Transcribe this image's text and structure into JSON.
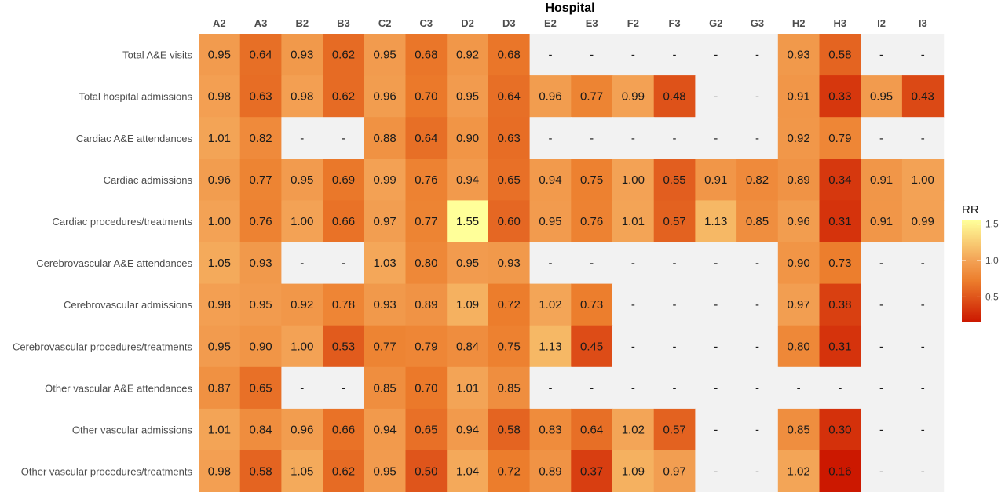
{
  "chart_data": {
    "type": "heatmap",
    "title": "Hospital",
    "xlabel": "Hospital",
    "ylabel": "",
    "x": [
      "A2",
      "A3",
      "B2",
      "B3",
      "C2",
      "C3",
      "D2",
      "D3",
      "E2",
      "E3",
      "F2",
      "F3",
      "G2",
      "G3",
      "H2",
      "H3",
      "I2",
      "I3"
    ],
    "y": [
      "Total A&E visits",
      "Total hospital admissions",
      "Cardiac A&E attendances",
      "Cardiac admissions",
      "Cardiac procedures/treatments",
      "Cerebrovascular A&E attendances",
      "Cerebrovascular admissions",
      "Cerebrovascular procedures/treatments",
      "Other vascular A&E attendances",
      "Other vascular admissions",
      "Other vascular procedures/treatments"
    ],
    "values": [
      [
        0.95,
        0.64,
        0.93,
        0.62,
        0.95,
        0.68,
        0.92,
        0.68,
        null,
        null,
        null,
        null,
        null,
        null,
        0.93,
        0.58,
        null,
        null
      ],
      [
        0.98,
        0.63,
        0.98,
        0.62,
        0.96,
        0.7,
        0.95,
        0.64,
        0.96,
        0.77,
        0.99,
        0.48,
        null,
        null,
        0.91,
        0.33,
        0.95,
        0.43
      ],
      [
        1.01,
        0.82,
        null,
        null,
        0.88,
        0.64,
        0.9,
        0.63,
        null,
        null,
        null,
        null,
        null,
        null,
        0.92,
        0.79,
        null,
        null
      ],
      [
        0.96,
        0.77,
        0.95,
        0.69,
        0.99,
        0.76,
        0.94,
        0.65,
        0.94,
        0.75,
        1.0,
        0.55,
        0.91,
        0.82,
        0.89,
        0.34,
        0.91,
        1.0
      ],
      [
        1.0,
        0.76,
        1.0,
        0.66,
        0.97,
        0.77,
        1.55,
        0.6,
        0.95,
        0.76,
        1.01,
        0.57,
        1.13,
        0.85,
        0.96,
        0.31,
        0.91,
        0.99
      ],
      [
        1.05,
        0.93,
        null,
        null,
        1.03,
        0.8,
        0.95,
        0.93,
        null,
        null,
        null,
        null,
        null,
        null,
        0.9,
        0.73,
        null,
        null
      ],
      [
        0.98,
        0.95,
        0.92,
        0.78,
        0.93,
        0.89,
        1.09,
        0.72,
        1.02,
        0.73,
        null,
        null,
        null,
        null,
        0.97,
        0.38,
        null,
        null
      ],
      [
        0.95,
        0.9,
        1.0,
        0.53,
        0.77,
        0.79,
        0.84,
        0.75,
        1.13,
        0.45,
        null,
        null,
        null,
        null,
        0.8,
        0.31,
        null,
        null
      ],
      [
        0.87,
        0.65,
        null,
        null,
        0.85,
        0.7,
        1.01,
        0.85,
        null,
        null,
        null,
        null,
        null,
        null,
        null,
        null,
        null,
        null
      ],
      [
        1.01,
        0.84,
        0.96,
        0.66,
        0.94,
        0.65,
        0.94,
        0.58,
        0.83,
        0.64,
        1.02,
        0.57,
        null,
        null,
        0.85,
        0.3,
        null,
        null
      ],
      [
        0.98,
        0.58,
        1.05,
        0.62,
        0.95,
        0.5,
        1.04,
        0.72,
        0.89,
        0.37,
        1.09,
        0.97,
        null,
        null,
        1.02,
        0.16,
        null,
        null
      ]
    ],
    "missing_label": "-",
    "legend": {
      "title": "RR",
      "ticks": [
        0.5,
        1.0,
        1.5
      ],
      "tick_labels": [
        "0.5",
        "1.0",
        "1.5"
      ],
      "range": [
        0.16,
        1.55
      ],
      "placement": "right"
    },
    "colors": {
      "low": "#cc1800",
      "mid": "#ec7d2c",
      "midhigh": "#f3a255",
      "high": "#ffff99",
      "missing": "#f2f2f2",
      "background": "#ffffff"
    },
    "value_decimals": 2
  }
}
